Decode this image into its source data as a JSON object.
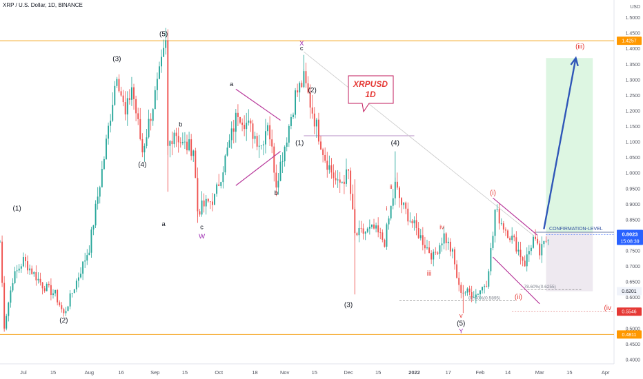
{
  "symbol_title": "XRP / U.S. Dollar, 1D, BINANCE",
  "currency": "USD",
  "colors": {
    "up": "#26a69a",
    "down": "#ef5350",
    "wave_dark": "#131722",
    "wave_red": "#e53935",
    "wave_purple": "#9c27b0",
    "channel": "#b8399b",
    "orange_line": "#f5a623",
    "arrow": "#2f56b8",
    "target_zone": "#d7f5dd",
    "stop_zone": "#ece7ee",
    "price_badge": "#2962ff",
    "red_badge": "#e53935",
    "orange_badge": "#ff9800"
  },
  "callout": {
    "line1": "XRPUSD",
    "line2": "1D"
  },
  "chart_data": {
    "type": "candlestick",
    "title": "XRP / U.S. Dollar, 1D, BINANCE",
    "ylabel": "USD",
    "ylim": [
      0.4,
      1.55
    ],
    "y_ticks": [
      "1.5000",
      "1.4500",
      "1.4000",
      "1.3500",
      "1.3000",
      "1.2500",
      "1.2000",
      "1.1500",
      "1.1000",
      "1.0500",
      "1.0000",
      "0.9500",
      "0.9000",
      "0.8500",
      "0.8000",
      "0.7500",
      "0.7000",
      "0.6500",
      "0.6000",
      "0.5500",
      "0.5000",
      "0.4500",
      "0.4000"
    ],
    "x_tick_labels": [
      "Jul",
      "15",
      "Aug",
      "16",
      "Sep",
      "15",
      "Oct",
      "18",
      "Nov",
      "15",
      "Dec",
      "15",
      "2022",
      "17",
      "Feb",
      "14",
      "Mar",
      "15",
      "Apr"
    ],
    "x_ticks": [
      "2021-07-01",
      "2021-07-15",
      "2021-08-01",
      "2021-08-16",
      "2021-09-01",
      "2021-09-15",
      "2021-10-01",
      "2021-10-18",
      "2021-11-01",
      "2021-11-15",
      "2021-12-01",
      "2021-12-15",
      "2022-01-01",
      "2022-01-17",
      "2022-02-01",
      "2022-02-14",
      "2022-03-01",
      "2022-03-15",
      "2022-04-01"
    ],
    "x_range": [
      "2021-06-20",
      "2022-04-05"
    ],
    "candles_shown": "daily candles 2021-06-20 to 2022-03-05, values estimated from gridlines",
    "pivot_path": [
      [
        "2021-06-20",
        0.78
      ],
      [
        "2021-06-22",
        0.51
      ],
      [
        "2021-06-26",
        0.66
      ],
      [
        "2021-07-01",
        0.72
      ],
      [
        "2021-07-10",
        0.64
      ],
      [
        "2021-07-16",
        0.61
      ],
      [
        "2021-07-20",
        0.545
      ],
      [
        "2021-08-01",
        0.76
      ],
      [
        "2021-08-08",
        1.05
      ],
      [
        "2021-08-14",
        1.33
      ],
      [
        "2021-08-18",
        1.18
      ],
      [
        "2021-08-21",
        1.28
      ],
      [
        "2021-08-26",
        1.07
      ],
      [
        "2021-09-02",
        1.28
      ],
      [
        "2021-09-06",
        1.41
      ],
      [
        "2021-09-07",
        1.08
      ],
      [
        "2021-09-10",
        1.14
      ],
      [
        "2021-09-14",
        1.09
      ],
      [
        "2021-09-19",
        1.08
      ],
      [
        "2021-09-21",
        0.88
      ],
      [
        "2021-09-29",
        0.92
      ],
      [
        "2021-10-03",
        1.02
      ],
      [
        "2021-10-10",
        1.2
      ],
      [
        "2021-10-21",
        1.09
      ],
      [
        "2021-10-24",
        1.17
      ],
      [
        "2021-10-28",
        0.97
      ],
      [
        "2021-11-02",
        1.12
      ],
      [
        "2021-11-06",
        1.25
      ],
      [
        "2021-11-10",
        1.3
      ],
      [
        "2021-11-16",
        1.15
      ],
      [
        "2021-11-20",
        1.05
      ],
      [
        "2021-11-26",
        0.96
      ],
      [
        "2021-12-01",
        1.0
      ],
      [
        "2021-12-04",
        0.8
      ],
      [
        "2021-12-13",
        0.82
      ],
      [
        "2021-12-18",
        0.78
      ],
      [
        "2021-12-23",
        0.96
      ],
      [
        "2021-12-26",
        0.9
      ],
      [
        "2021-12-31",
        0.84
      ],
      [
        "2022-01-06",
        0.77
      ],
      [
        "2022-01-10",
        0.73
      ],
      [
        "2022-01-15",
        0.8
      ],
      [
        "2022-01-19",
        0.74
      ],
      [
        "2022-01-22",
        0.63
      ],
      [
        "2022-01-24",
        0.62
      ],
      [
        "2022-01-30",
        0.61
      ],
      [
        "2022-02-04",
        0.65
      ],
      [
        "2022-02-07",
        0.8
      ],
      [
        "2022-02-08",
        0.88
      ],
      [
        "2022-02-12",
        0.83
      ],
      [
        "2022-02-17",
        0.78
      ],
      [
        "2022-02-22",
        0.71
      ],
      [
        "2022-02-26",
        0.79
      ],
      [
        "2022-03-01",
        0.74
      ],
      [
        "2022-03-05",
        0.8
      ]
    ],
    "last_price": "0.8023",
    "countdown": "15:08:39",
    "price_labels": [
      {
        "value": "1.4257",
        "y": 1.4257,
        "style": "orange"
      },
      {
        "value": "0.6201",
        "y": 0.6201,
        "style": "light"
      },
      {
        "value": "0.5546",
        "y": 0.5546,
        "style": "red"
      },
      {
        "value": "0.4811",
        "y": 0.4811,
        "style": "orange"
      }
    ],
    "horizontal_lines": [
      {
        "name": "top-resistance",
        "y": 1.4257,
        "from": "2021-06-20",
        "to": "2022-04-05"
      },
      {
        "name": "bottom-support",
        "y": 0.4811,
        "from": "2021-06-20",
        "to": "2022-04-05"
      },
      {
        "name": "confirmation-level",
        "y": 0.81,
        "from": "2022-02-27",
        "to": "2022-04-05",
        "label": "CONFIRMATION-LEVEL"
      },
      {
        "name": "wave-iv-level",
        "y": 0.5546,
        "from": "2022-02-16",
        "to": "2022-04-05"
      },
      {
        "name": "wave-1-shelf",
        "y": 1.12,
        "from": "2021-11-10",
        "to": "2022-01-01"
      }
    ],
    "fib_levels": [
      {
        "label": "78.60%(0.6255)",
        "y": 0.6255,
        "from": "2022-02-20",
        "to": "2022-03-21"
      },
      {
        "label": "88.60%(0.5895)",
        "y": 0.5895,
        "from": "2021-12-25",
        "to": "2022-02-18"
      }
    ],
    "wave_labels": [
      {
        "text": "(1)",
        "x": "2021-06-28",
        "y": 0.88,
        "color": "dark"
      },
      {
        "text": "(2)",
        "x": "2021-07-20",
        "y": 0.52,
        "color": "dark"
      },
      {
        "text": "(3)",
        "x": "2021-08-14",
        "y": 1.36,
        "color": "dark"
      },
      {
        "text": "(4)",
        "x": "2021-08-26",
        "y": 1.02,
        "color": "dark"
      },
      {
        "text": "(5)",
        "x": "2021-09-05",
        "y": 1.44,
        "color": "dark"
      },
      {
        "text": "a",
        "x": "2021-09-05",
        "y": 0.83,
        "color": "dark"
      },
      {
        "text": "b",
        "x": "2021-09-13",
        "y": 1.15,
        "color": "dark"
      },
      {
        "text": "c",
        "x": "2021-09-23",
        "y": 0.82,
        "color": "dark"
      },
      {
        "text": "W",
        "x": "2021-09-23",
        "y": 0.79,
        "color": "purple"
      },
      {
        "text": "a",
        "x": "2021-10-07",
        "y": 1.28,
        "color": "dark"
      },
      {
        "text": "b",
        "x": "2021-10-28",
        "y": 0.93,
        "color": "dark"
      },
      {
        "text": "X",
        "x": "2021-11-09",
        "y": 1.41,
        "color": "purple"
      },
      {
        "text": "c",
        "x": "2021-11-09",
        "y": 1.395,
        "color": "dark"
      },
      {
        "text": "(2)",
        "x": "2021-11-14",
        "y": 1.26,
        "color": "dark"
      },
      {
        "text": "(1)",
        "x": "2021-11-08",
        "y": 1.09,
        "color": "dark"
      },
      {
        "text": "(3)",
        "x": "2021-12-01",
        "y": 0.57,
        "color": "dark"
      },
      {
        "text": "(4)",
        "x": "2021-12-23",
        "y": 1.09,
        "color": "dark"
      },
      {
        "text": "ii",
        "x": "2021-12-21",
        "y": 0.95,
        "color": "red"
      },
      {
        "text": "i",
        "x": "2021-12-19",
        "y": 0.88,
        "color": "red"
      },
      {
        "text": "iii",
        "x": "2022-01-08",
        "y": 0.67,
        "color": "red"
      },
      {
        "text": "iv",
        "x": "2022-01-14",
        "y": 0.82,
        "color": "red"
      },
      {
        "text": "v",
        "x": "2022-01-23",
        "y": 0.535,
        "color": "red"
      },
      {
        "text": "(5)",
        "x": "2022-01-23",
        "y": 0.51,
        "color": "dark"
      },
      {
        "text": "Y",
        "x": "2022-01-23",
        "y": 0.485,
        "color": "purple"
      },
      {
        "text": "(i)",
        "x": "2022-02-07",
        "y": 0.93,
        "color": "red"
      },
      {
        "text": "(ii)",
        "x": "2022-02-19",
        "y": 0.595,
        "color": "red"
      },
      {
        "text": "(iii)",
        "x": "2022-03-20",
        "y": 1.4,
        "color": "red"
      },
      {
        "text": "(iv",
        "x": "2022-04-02",
        "y": 0.56,
        "color": "red"
      }
    ],
    "triangle": [
      [
        "2021-10-09",
        1.27
      ],
      [
        "2021-10-30",
        1.17
      ],
      [
        "2021-10-09",
        0.96
      ],
      [
        "2021-10-30",
        1.07
      ]
    ],
    "falling_channel": [
      [
        "2022-02-07",
        0.92
      ],
      [
        "2022-02-28",
        0.8
      ],
      [
        "2022-02-07",
        0.73
      ],
      [
        "2022-03-01",
        0.58
      ]
    ],
    "diagonal_line": [
      [
        "2021-11-10",
        1.39
      ],
      [
        "2022-02-26",
        0.8
      ]
    ],
    "projection_arrow": [
      [
        "2022-03-03",
        0.82
      ],
      [
        "2022-03-18",
        1.37
      ]
    ],
    "target_zone": {
      "from": "2022-03-04",
      "to": "2022-03-26",
      "top": 1.37,
      "bottom": 0.81
    },
    "stop_zone": {
      "from": "2022-03-04",
      "to": "2022-03-26",
      "top": 0.81,
      "bottom": 0.62
    },
    "grid": false
  }
}
